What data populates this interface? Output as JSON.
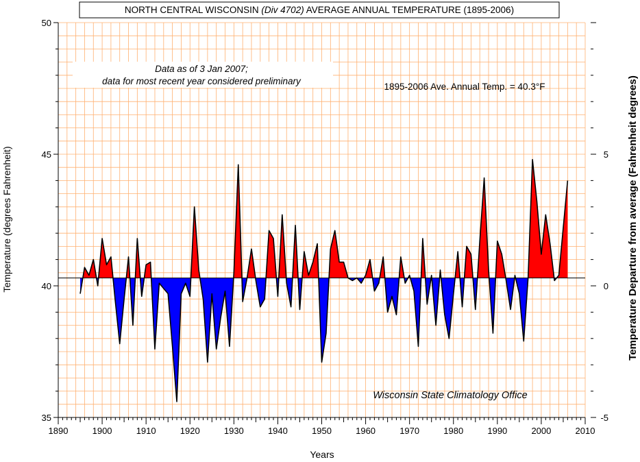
{
  "chart_data": {
    "type": "area",
    "title": {
      "prefix": "NORTH CENTRAL WISCONSIN ",
      "division": "(Div 4702)",
      "suffix": " AVERAGE  ANNUAL TEMPERATURE (1895-2006)"
    },
    "xlabel": "Years",
    "ylabel": "Temperature  (degrees Fahrenheit)",
    "y2label": "Temperature Departure from average (Fahrenheit degrees)",
    "xlim": [
      1890,
      2010
    ],
    "ylim": [
      35,
      50
    ],
    "y2lim": [
      -5,
      10
    ],
    "x_ticks": [
      1890,
      1900,
      1910,
      1920,
      1930,
      1940,
      1950,
      1960,
      1970,
      1980,
      1990,
      2000,
      2010
    ],
    "y_ticks": [
      35,
      40,
      45,
      50
    ],
    "y2_ticks": [
      -5,
      0,
      5
    ],
    "baseline": 40.3,
    "grid": true,
    "above_color": "#ff0000",
    "below_color": "#0000ff",
    "grid_color": "#ffb070",
    "note_line1": "Data as of 3 Jan 2007;",
    "note_line2": "data for most recent year considered preliminary",
    "average_note": "1895-2006 Ave. Annual Temp. = 40.3°F",
    "credit": "Wisconsin State Climatology Office",
    "series": [
      {
        "x": [
          1895,
          1896,
          1897,
          1898,
          1899,
          1900,
          1901,
          1902,
          1903,
          1904,
          1905,
          1906,
          1907,
          1908,
          1909,
          1910,
          1911,
          1912,
          1913,
          1914,
          1915,
          1916,
          1917,
          1918,
          1919,
          1920,
          1921,
          1922,
          1923,
          1924,
          1925,
          1926,
          1927,
          1928,
          1929,
          1930,
          1931,
          1932,
          1933,
          1934,
          1935,
          1936,
          1937,
          1938,
          1939,
          1940,
          1941,
          1942,
          1943,
          1944,
          1945,
          1946,
          1947,
          1948,
          1949,
          1950,
          1951,
          1952,
          1953,
          1954,
          1955,
          1956,
          1957,
          1958,
          1959,
          1960,
          1961,
          1962,
          1963,
          1964,
          1965,
          1966,
          1967,
          1968,
          1969,
          1970,
          1971,
          1972,
          1973,
          1974,
          1975,
          1976,
          1977,
          1978,
          1979,
          1980,
          1981,
          1982,
          1983,
          1984,
          1985,
          1986,
          1987,
          1988,
          1989,
          1990,
          1991,
          1992,
          1993,
          1994,
          1995,
          1996,
          1997,
          1998,
          1999,
          2000,
          2001,
          2002,
          2003,
          2004,
          2005,
          2006
        ],
        "y": [
          39.7,
          40.7,
          40.4,
          41.0,
          40.0,
          41.8,
          40.8,
          41.1,
          39.4,
          37.8,
          39.5,
          41.1,
          38.5,
          41.8,
          39.6,
          40.8,
          40.9,
          37.6,
          40.1,
          39.9,
          39.7,
          37.7,
          35.6,
          39.7,
          40.1,
          39.6,
          43.0,
          40.6,
          39.5,
          37.1,
          39.7,
          37.6,
          38.8,
          39.8,
          37.7,
          40.5,
          44.6,
          39.4,
          40.3,
          41.4,
          40.2,
          39.2,
          39.5,
          42.1,
          41.8,
          39.6,
          42.7,
          40.1,
          39.2,
          42.3,
          39.1,
          41.3,
          40.4,
          40.9,
          41.6,
          37.1,
          38.2,
          41.4,
          42.1,
          40.9,
          40.9,
          40.3,
          40.2,
          40.3,
          40.1,
          40.4,
          41.0,
          39.8,
          40.1,
          41.1,
          39.0,
          39.6,
          38.9,
          41.1,
          40.1,
          40.4,
          39.8,
          37.7,
          41.8,
          39.3,
          40.4,
          38.5,
          40.6,
          38.9,
          38.0,
          39.7,
          41.3,
          39.2,
          41.5,
          41.2,
          39.1,
          41.7,
          44.1,
          40.6,
          38.2,
          41.7,
          41.2,
          40.2,
          39.1,
          40.4,
          39.7,
          37.9,
          40.3,
          44.8,
          43.2,
          41.2,
          42.7,
          41.6,
          40.2,
          40.4,
          42.2,
          44.0
        ]
      }
    ]
  }
}
